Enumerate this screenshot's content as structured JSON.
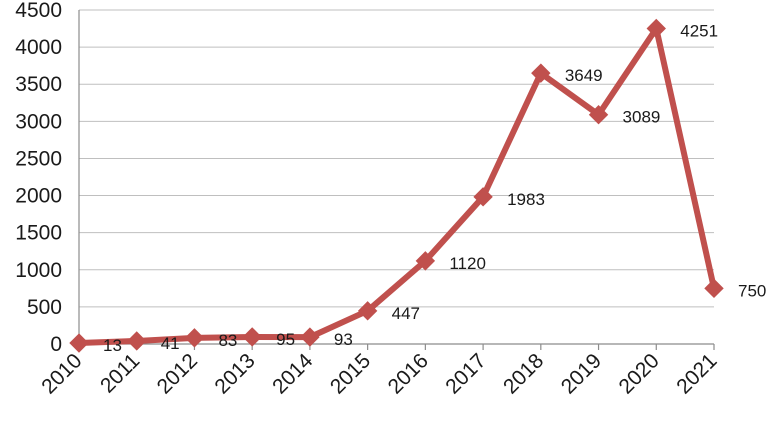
{
  "chart_data": {
    "type": "line",
    "x": [
      "2010",
      "2011",
      "2012",
      "2013",
      "2014",
      "2015",
      "2016",
      "2017",
      "2018",
      "2019",
      "2020",
      "2021"
    ],
    "series": [
      {
        "values": [
          13,
          41,
          83,
          95,
          93,
          447,
          1120,
          1983,
          3649,
          3089,
          4251,
          750
        ],
        "labels": [
          "13",
          "41",
          "83",
          "95",
          "93",
          "447",
          "1120",
          "1983",
          "3649",
          "3089",
          "4251",
          "750"
        ],
        "color": "#c0504d",
        "marker": "diamond"
      }
    ],
    "y_ticks": [
      "0",
      "500",
      "1000",
      "1500",
      "2000",
      "2500",
      "3000",
      "3500",
      "4000",
      "4500"
    ],
    "ylim": [
      0,
      4500
    ],
    "grid": true,
    "legend": "none",
    "title": "",
    "xlabel": "",
    "ylabel": ""
  }
}
